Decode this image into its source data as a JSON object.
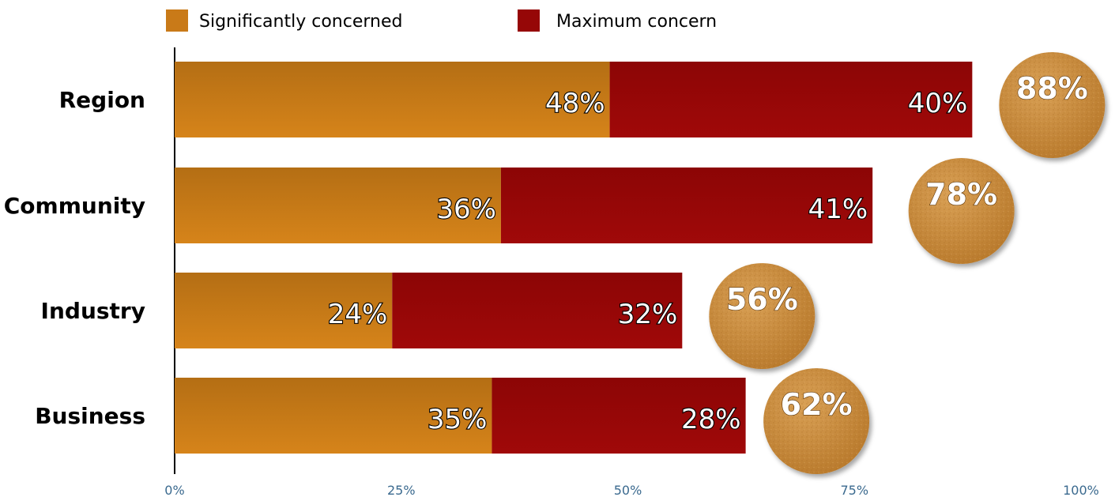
{
  "chart_data": {
    "type": "bar",
    "orientation": "horizontal",
    "stacked": true,
    "categories": [
      "Region",
      "Community",
      "Industry",
      "Business"
    ],
    "series": [
      {
        "name": "Significantly concerned",
        "values": [
          48,
          36,
          24,
          35
        ]
      },
      {
        "name": "Maximum concern",
        "values": [
          40,
          41,
          32,
          28
        ]
      }
    ],
    "segment_labels": [
      [
        "48%",
        "36%",
        "24%",
        "35%"
      ],
      [
        "40%",
        "41%",
        "32%",
        "28%"
      ]
    ],
    "totals": [
      {
        "value": 88,
        "label": "88%"
      },
      {
        "value": 78,
        "label": "78%"
      },
      {
        "value": 56,
        "label": "56%"
      },
      {
        "value": 62,
        "label": "62%"
      }
    ],
    "x_ticks": [
      "0%",
      "25%",
      "50%",
      "75%",
      "100%"
    ],
    "xlim": [
      0,
      100
    ],
    "grid": false,
    "legend_position": "top",
    "colors": {
      "significantly_concerned": "#c97a18",
      "maximum_concern": "#960707",
      "total_bubble": "#c98a3c",
      "tick_text": "#3b6a8f"
    }
  }
}
